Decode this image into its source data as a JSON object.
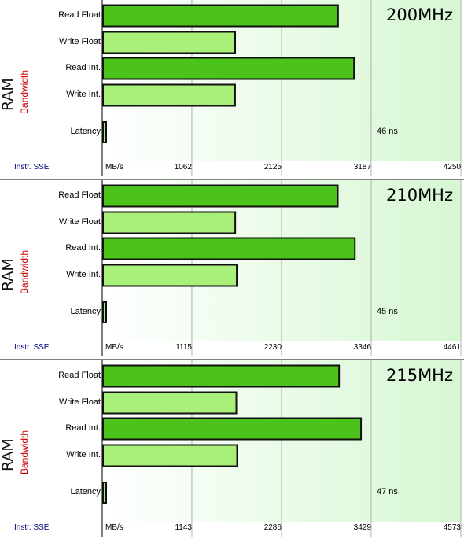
{
  "chart_data": [
    {
      "type": "bar",
      "orientation": "horizontal",
      "panel_title": "200MHz",
      "side_label": "RAM",
      "side_sublabel": "Bandwidth",
      "instr_label": "Instr. SSE",
      "unit_label": "MB/s",
      "categories": [
        "Read Float",
        "Write Float",
        "Read Int.",
        "Write Int.",
        "Latency"
      ],
      "values": [
        2785,
        1566,
        2975,
        1565,
        46
      ],
      "latency_label": "46 ns",
      "xticks": [
        "1062",
        "2125",
        "3187",
        "4250"
      ],
      "xlim": [
        0,
        4250
      ],
      "grid": true
    },
    {
      "type": "bar",
      "orientation": "horizontal",
      "panel_title": "210MHz",
      "side_label": "RAM",
      "side_sublabel": "Bandwidth",
      "instr_label": "Instr. SSE",
      "unit_label": "MB/s",
      "categories": [
        "Read Float",
        "Write Float",
        "Read Int.",
        "Write Int.",
        "Latency"
      ],
      "values": [
        2920,
        1645,
        3133,
        1664,
        45
      ],
      "latency_label": "45 ns",
      "xticks": [
        "1115",
        "2230",
        "3346",
        "4461"
      ],
      "xlim": [
        0,
        4461
      ],
      "grid": true
    },
    {
      "type": "bar",
      "orientation": "horizontal",
      "panel_title": "215MHz",
      "side_label": "RAM",
      "side_sublabel": "Bandwidth",
      "instr_label": "Instr. SSE",
      "unit_label": "MB/s",
      "categories": [
        "Read Float",
        "Write Float",
        "Read Int.",
        "Write Int.",
        "Latency"
      ],
      "values": [
        3010,
        1700,
        3290,
        1710,
        47
      ],
      "latency_label": "47 ns",
      "xticks": [
        "1143",
        "2286",
        "3429",
        "4573"
      ],
      "xlim": [
        0,
        4573
      ],
      "grid": true
    }
  ],
  "colors": {
    "bar_read": "#4cc31a",
    "bar_write": "#a8f07a",
    "plot_bg_left": "#ffffff",
    "plot_bg_right": "#d6f7d2",
    "grid": "#b0b0b0",
    "sublabel": "#cc0000",
    "instr": "#000080"
  }
}
